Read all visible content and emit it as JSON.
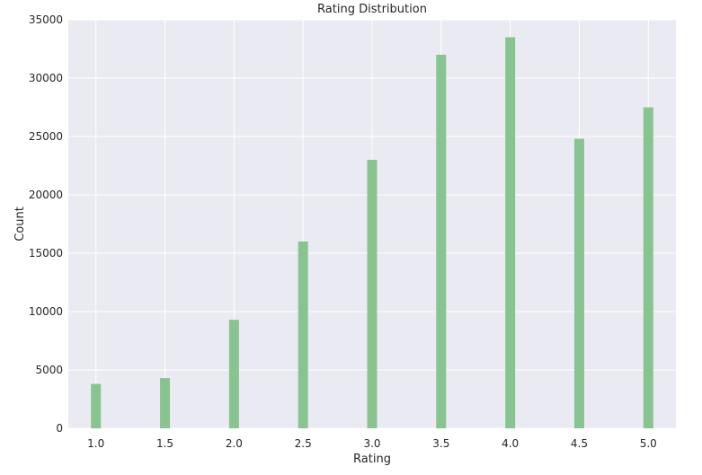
{
  "chart_data": {
    "type": "bar",
    "title": "Rating Distribution",
    "xlabel": "Rating",
    "ylabel": "Count",
    "categories": [
      1.0,
      1.5,
      2.0,
      2.5,
      3.0,
      3.5,
      4.0,
      4.5,
      5.0
    ],
    "values": [
      3800,
      4300,
      9300,
      16000,
      23000,
      32000,
      33500,
      24800,
      27500
    ],
    "x_tick_labels": [
      "1.0",
      "1.5",
      "2.0",
      "2.5",
      "3.0",
      "3.5",
      "4.0",
      "4.5",
      "5.0"
    ],
    "y_ticks": [
      0,
      5000,
      10000,
      15000,
      20000,
      25000,
      30000,
      35000
    ],
    "y_tick_labels": [
      "0",
      "5000",
      "10000",
      "15000",
      "20000",
      "25000",
      "30000",
      "35000"
    ],
    "xlim": [
      0.8,
      5.2
    ],
    "ylim": [
      0,
      35000
    ],
    "grid": true,
    "colors": {
      "bar": "#88c490",
      "plot_background": "#eaeaf2",
      "grid": "#ffffff"
    }
  }
}
